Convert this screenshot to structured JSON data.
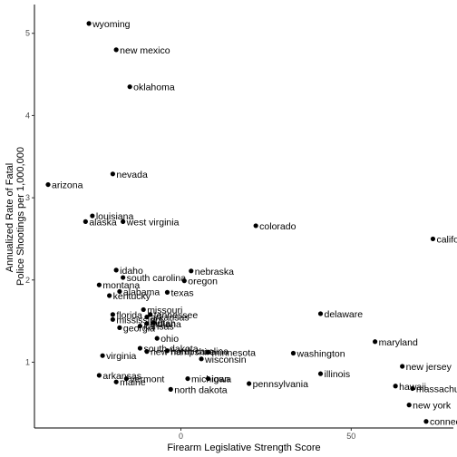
{
  "chart_data": {
    "type": "scatter",
    "title": "",
    "xlabel": "Firearm Legislative Strength Score",
    "ylabel": [
      "Annualized Rate of Fatal",
      "Police Shootings per 1,000,000"
    ],
    "xlim": [
      -43,
      80
    ],
    "ylim": [
      0.2,
      5.35
    ],
    "x_ticks": [
      0,
      50
    ],
    "y_ticks": [
      1,
      2,
      3,
      4,
      5
    ],
    "grid": false,
    "legend": "none",
    "point_color": "#000000",
    "points": [
      {
        "label": "wyoming",
        "x": -27,
        "y": 5.12
      },
      {
        "label": "new mexico",
        "x": -19,
        "y": 4.8
      },
      {
        "label": "oklahoma",
        "x": -15,
        "y": 4.35
      },
      {
        "label": "nevada",
        "x": -20,
        "y": 3.29
      },
      {
        "label": "arizona",
        "x": -39,
        "y": 3.16
      },
      {
        "label": "louisiana",
        "x": -26,
        "y": 2.78
      },
      {
        "label": "alaska",
        "x": -28,
        "y": 2.71
      },
      {
        "label": "west virginia",
        "x": -17,
        "y": 2.71
      },
      {
        "label": "colorado",
        "x": 22,
        "y": 2.66
      },
      {
        "label": "california",
        "x": 74,
        "y": 2.5
      },
      {
        "label": "idaho",
        "x": -19,
        "y": 2.12
      },
      {
        "label": "nebraska",
        "x": 3,
        "y": 2.11
      },
      {
        "label": "south carolina",
        "x": -17,
        "y": 2.03
      },
      {
        "label": "oregon",
        "x": 1,
        "y": 1.99
      },
      {
        "label": "montana",
        "x": -24,
        "y": 1.94
      },
      {
        "label": "alabama",
        "x": -18,
        "y": 1.86
      },
      {
        "label": "texas",
        "x": -4,
        "y": 1.85
      },
      {
        "label": "kentucky",
        "x": -21,
        "y": 1.81
      },
      {
        "label": "missouri",
        "x": -11,
        "y": 1.64
      },
      {
        "label": "delaware",
        "x": 41,
        "y": 1.59
      },
      {
        "label": "tennessee",
        "x": -9,
        "y": 1.58
      },
      {
        "label": "florida",
        "x": -20,
        "y": 1.58
      },
      {
        "label": "arkansas",
        "x": -10,
        "y": 1.55
      },
      {
        "label": "mississippi",
        "x": -20,
        "y": 1.52
      },
      {
        "label": "indiana",
        "x": -10,
        "y": 1.47
      },
      {
        "label": "utah",
        "x": -8,
        "y": 1.48
      },
      {
        "label": "georgia",
        "x": -18,
        "y": 1.42
      },
      {
        "label": "kansas",
        "x": -12,
        "y": 1.44
      },
      {
        "label": "ohio",
        "x": -7,
        "y": 1.29
      },
      {
        "label": "maryland",
        "x": 57,
        "y": 1.25
      },
      {
        "label": "south dakota",
        "x": -12,
        "y": 1.17
      },
      {
        "label": "north carolina",
        "x": -4,
        "y": 1.14
      },
      {
        "label": "new hampshire",
        "x": -10,
        "y": 1.13
      },
      {
        "label": "minnesota",
        "x": 8,
        "y": 1.12
      },
      {
        "label": "washington",
        "x": 33,
        "y": 1.11
      },
      {
        "label": "virginia",
        "x": -23,
        "y": 1.08
      },
      {
        "label": "wisconsin",
        "x": 6,
        "y": 1.04
      },
      {
        "label": "new jersey",
        "x": 65,
        "y": 0.95
      },
      {
        "label": "illinois",
        "x": 41,
        "y": 0.86
      },
      {
        "label": "arkansas",
        "x": -24,
        "y": 0.84
      },
      {
        "label": "vermont",
        "x": -16,
        "y": 0.8
      },
      {
        "label": "michigan",
        "x": 2,
        "y": 0.8
      },
      {
        "label": "iowa",
        "x": 8,
        "y": 0.8
      },
      {
        "label": "maine",
        "x": -19,
        "y": 0.76
      },
      {
        "label": "pennsylvania",
        "x": 20,
        "y": 0.74
      },
      {
        "label": "hawaii",
        "x": 63,
        "y": 0.71
      },
      {
        "label": "massachusetts",
        "x": 68,
        "y": 0.68
      },
      {
        "label": "north dakota",
        "x": -3,
        "y": 0.67
      },
      {
        "label": "new york",
        "x": 67,
        "y": 0.48
      },
      {
        "label": "connecticut",
        "x": 72,
        "y": 0.28
      }
    ]
  }
}
